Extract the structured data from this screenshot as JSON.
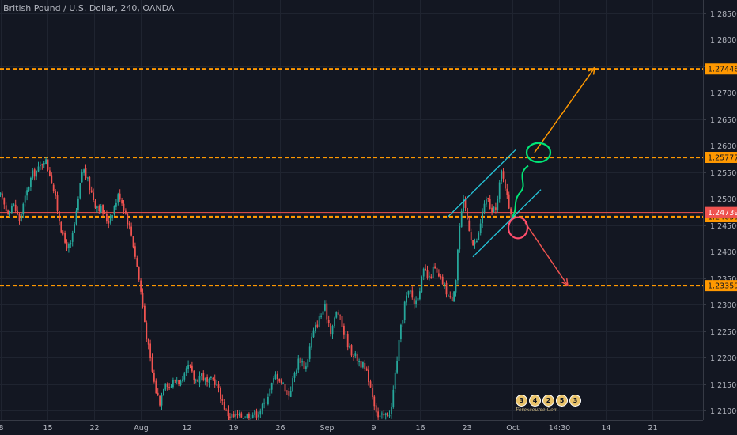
{
  "title": "British Pound / U.S. Dollar, 240, OANDA",
  "watermark": {
    "digits": [
      "3",
      "4",
      "2",
      "5",
      "3"
    ],
    "subtitle": "Forexcourse.Com"
  },
  "chart_data": {
    "type": "candlestick",
    "title": "British Pound / U.S. Dollar, 240, OANDA",
    "ylim": [
      1.20935,
      1.28658
    ],
    "y_tick_labels": [
      "1.28500",
      "1.28000",
      "1.27500",
      "1.27000",
      "1.26500",
      "1.26000",
      "1.25500",
      "1.25000",
      "1.24500",
      "1.24000",
      "1.23500",
      "1.23000",
      "1.22500",
      "1.22000",
      "1.21500",
      "1.21000"
    ],
    "x_tick_labels": [
      "8",
      "15",
      "22",
      "Aug",
      "12",
      "19",
      "26",
      "Sep",
      "9",
      "16",
      "23",
      "Oct",
      "14:30",
      "14",
      "21"
    ],
    "horizontal_levels": [
      {
        "price": 1.27446,
        "label": "1.27446",
        "color": "#ff9800"
      },
      {
        "price": 1.25777,
        "label": "1.25777",
        "color": "#ff9800"
      },
      {
        "price": 1.24659,
        "label": "1.24659",
        "color": "#ff9800"
      },
      {
        "price": 1.23359,
        "label": "1.23359",
        "color": "#ff9800"
      }
    ],
    "current_price": {
      "price": 1.24739,
      "label": "1.24739",
      "color": "#ef5350"
    },
    "colors": {
      "up": "#26a69a",
      "down": "#ef5350",
      "background": "#131722",
      "grid": "#1f2430",
      "axis_text": "#b2b5be"
    },
    "price_path": [
      {
        "t": 0,
        "p": 1.2505
      },
      {
        "t": 8,
        "p": 1.2475
      },
      {
        "t": 16,
        "p": 1.249
      },
      {
        "t": 24,
        "p": 1.246
      },
      {
        "t": 32,
        "p": 1.2505
      },
      {
        "t": 40,
        "p": 1.2545
      },
      {
        "t": 48,
        "p": 1.2555
      },
      {
        "t": 56,
        "p": 1.2577
      },
      {
        "t": 64,
        "p": 1.254
      },
      {
        "t": 72,
        "p": 1.248
      },
      {
        "t": 80,
        "p": 1.242
      },
      {
        "t": 88,
        "p": 1.2405
      },
      {
        "t": 96,
        "p": 1.247
      },
      {
        "t": 104,
        "p": 1.256
      },
      {
        "t": 112,
        "p": 1.2525
      },
      {
        "t": 120,
        "p": 1.249
      },
      {
        "t": 128,
        "p": 1.248
      },
      {
        "t": 136,
        "p": 1.2455
      },
      {
        "t": 144,
        "p": 1.2485
      },
      {
        "t": 150,
        "p": 1.251
      },
      {
        "t": 158,
        "p": 1.2475
      },
      {
        "t": 166,
        "p": 1.243
      },
      {
        "t": 172,
        "p": 1.238
      },
      {
        "t": 178,
        "p": 1.232
      },
      {
        "t": 184,
        "p": 1.225
      },
      {
        "t": 190,
        "p": 1.219
      },
      {
        "t": 196,
        "p": 1.214
      },
      {
        "t": 202,
        "p": 1.2115
      },
      {
        "t": 208,
        "p": 1.216
      },
      {
        "t": 214,
        "p": 1.2145
      },
      {
        "t": 222,
        "p": 1.216
      },
      {
        "t": 230,
        "p": 1.215
      },
      {
        "t": 238,
        "p": 1.2185
      },
      {
        "t": 246,
        "p": 1.2155
      },
      {
        "t": 254,
        "p": 1.217
      },
      {
        "t": 262,
        "p": 1.215
      },
      {
        "t": 270,
        "p": 1.216
      },
      {
        "t": 278,
        "p": 1.213
      },
      {
        "t": 286,
        "p": 1.2095
      },
      {
        "t": 295,
        "p": 1.2088
      },
      {
        "t": 305,
        "p": 1.209
      },
      {
        "t": 315,
        "p": 1.2093
      },
      {
        "t": 325,
        "p": 1.2095
      },
      {
        "t": 333,
        "p": 1.211
      },
      {
        "t": 341,
        "p": 1.214
      },
      {
        "t": 349,
        "p": 1.217
      },
      {
        "t": 357,
        "p": 1.215
      },
      {
        "t": 365,
        "p": 1.213
      },
      {
        "t": 371,
        "p": 1.2165
      },
      {
        "t": 378,
        "p": 1.22
      },
      {
        "t": 386,
        "p": 1.218
      },
      {
        "t": 394,
        "p": 1.224
      },
      {
        "t": 402,
        "p": 1.227
      },
      {
        "t": 410,
        "p": 1.2295
      },
      {
        "t": 418,
        "p": 1.225
      },
      {
        "t": 426,
        "p": 1.229
      },
      {
        "t": 434,
        "p": 1.225
      },
      {
        "t": 442,
        "p": 1.2215
      },
      {
        "t": 450,
        "p": 1.22
      },
      {
        "t": 458,
        "p": 1.2185
      },
      {
        "t": 466,
        "p": 1.216
      },
      {
        "t": 472,
        "p": 1.212
      },
      {
        "t": 478,
        "p": 1.2085
      },
      {
        "t": 486,
        "p": 1.209
      },
      {
        "t": 494,
        "p": 1.21
      },
      {
        "t": 500,
        "p": 1.218
      },
      {
        "t": 506,
        "p": 1.225
      },
      {
        "t": 512,
        "p": 1.231
      },
      {
        "t": 518,
        "p": 1.2325
      },
      {
        "t": 524,
        "p": 1.23
      },
      {
        "t": 530,
        "p": 1.233
      },
      {
        "t": 536,
        "p": 1.2365
      },
      {
        "t": 542,
        "p": 1.2345
      },
      {
        "t": 548,
        "p": 1.237
      },
      {
        "t": 554,
        "p": 1.235
      },
      {
        "t": 560,
        "p": 1.234
      },
      {
        "t": 566,
        "p": 1.2318
      },
      {
        "t": 570,
        "p": 1.2305
      },
      {
        "t": 576,
        "p": 1.235
      },
      {
        "t": 580,
        "p": 1.244
      },
      {
        "t": 586,
        "p": 1.2495
      },
      {
        "t": 592,
        "p": 1.245
      },
      {
        "t": 598,
        "p": 1.241
      },
      {
        "t": 604,
        "p": 1.2425
      },
      {
        "t": 610,
        "p": 1.248
      },
      {
        "t": 616,
        "p": 1.25
      },
      {
        "t": 622,
        "p": 1.247
      },
      {
        "t": 628,
        "p": 1.249
      },
      {
        "t": 634,
        "p": 1.2555
      },
      {
        "t": 638,
        "p": 1.253
      },
      {
        "t": 642,
        "p": 1.249
      },
      {
        "t": 646,
        "p": 1.2474
      }
    ],
    "annotations": [
      {
        "kind": "arrow",
        "color": "#ff9800",
        "from": {
          "t": 676,
          "p": 1.2587
        },
        "to": {
          "t": 752,
          "p": 1.2747
        }
      },
      {
        "kind": "arrow",
        "color": "#ef5350",
        "from": {
          "t": 664,
          "p": 1.2455
        },
        "to": {
          "t": 718,
          "p": 1.2336
        }
      },
      {
        "kind": "line",
        "color": "#26c6da",
        "from": {
          "t": 566,
          "p": 1.2465
        },
        "to": {
          "t": 652,
          "p": 1.2592
        }
      },
      {
        "kind": "line",
        "color": "#26c6da",
        "from": {
          "t": 598,
          "p": 1.239
        },
        "to": {
          "t": 684,
          "p": 1.2517
        }
      },
      {
        "kind": "ellipse",
        "color": "#00e676",
        "center": {
          "t": 681,
          "p": 1.2587
        },
        "rt": 15,
        "rp": 0.0018
      },
      {
        "kind": "ellipse",
        "color": "#ff4d6d",
        "center": {
          "t": 655,
          "p": 1.2445
        },
        "rt": 12,
        "rp": 0.002
      }
    ]
  }
}
